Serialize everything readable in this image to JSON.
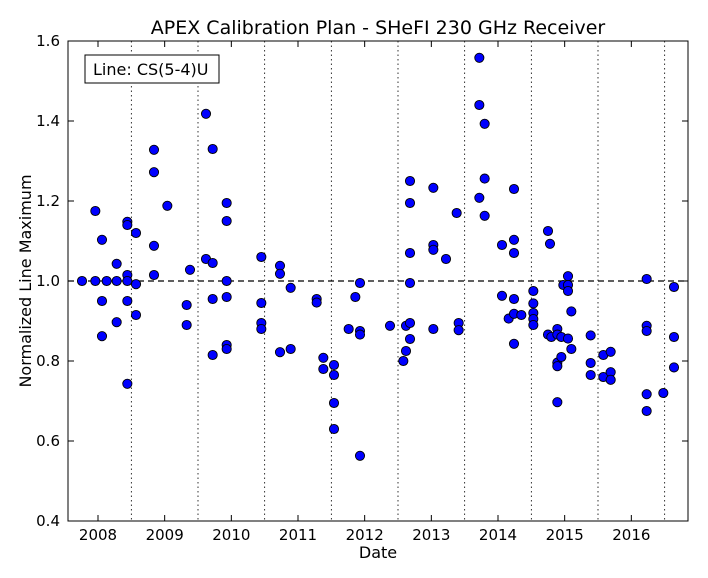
{
  "chart_data": {
    "type": "scatter",
    "title": "APEX Calibration Plan - SHeFI 230 GHz Receiver",
    "xlabel": "Date",
    "ylabel": "Normalized Line Maximum",
    "annotation": "Line: CS(5-4)U",
    "xlim": [
      2007.55,
      2016.85
    ],
    "ylim": [
      0.4,
      1.6
    ],
    "x_ticks": [
      "2008",
      "2009",
      "2010",
      "2011",
      "2012",
      "2013",
      "2014",
      "2015",
      "2016"
    ],
    "x_tick_values": [
      2008,
      2009,
      2010,
      2011,
      2012,
      2013,
      2014,
      2015,
      2016
    ],
    "y_ticks": [
      "0.4",
      "0.6",
      "0.8",
      "1.0",
      "1.2",
      "1.4",
      "1.6"
    ],
    "y_tick_values": [
      0.4,
      0.6,
      0.8,
      1.0,
      1.2,
      1.4,
      1.6
    ],
    "reference_line": 1.0,
    "season_boundaries": [
      2008.5,
      2009.5,
      2010.5,
      2011.5,
      2012.5,
      2013.5,
      2014.5,
      2015.5,
      2016.5
    ],
    "grid": "vertical dotted lines at season boundaries",
    "marker_color": "#0000ff",
    "series": [
      {
        "points": [
          [
            2007.76,
            1.0
          ],
          [
            2007.96,
            1.0
          ],
          [
            2007.96,
            1.175
          ],
          [
            2008.06,
            1.103
          ],
          [
            2008.06,
            0.95
          ],
          [
            2008.06,
            0.862
          ],
          [
            2008.13,
            1.0
          ],
          [
            2008.28,
            1.0
          ],
          [
            2008.28,
            1.043
          ],
          [
            2008.28,
            0.897
          ],
          [
            2008.44,
            1.148
          ],
          [
            2008.44,
            1.14
          ],
          [
            2008.44,
            1.015
          ],
          [
            2008.44,
            1.0
          ],
          [
            2008.44,
            0.95
          ],
          [
            2008.44,
            0.743
          ],
          [
            2008.57,
            1.12
          ],
          [
            2008.57,
            0.992
          ],
          [
            2008.57,
            0.915
          ],
          [
            2008.84,
            1.328
          ],
          [
            2008.84,
            1.272
          ],
          [
            2008.84,
            1.088
          ],
          [
            2008.84,
            1.015
          ],
          [
            2009.04,
            1.188
          ],
          [
            2009.33,
            0.94
          ],
          [
            2009.33,
            0.89
          ],
          [
            2009.38,
            1.028
          ],
          [
            2009.62,
            1.418
          ],
          [
            2009.62,
            1.055
          ],
          [
            2009.72,
            1.33
          ],
          [
            2009.72,
            1.045
          ],
          [
            2009.72,
            0.955
          ],
          [
            2009.72,
            0.815
          ],
          [
            2009.93,
            1.195
          ],
          [
            2009.93,
            1.15
          ],
          [
            2009.93,
            1.0
          ],
          [
            2009.93,
            0.96
          ],
          [
            2009.93,
            0.84
          ],
          [
            2009.93,
            0.83
          ],
          [
            2010.45,
            1.06
          ],
          [
            2010.45,
            0.945
          ],
          [
            2010.45,
            0.895
          ],
          [
            2010.45,
            0.88
          ],
          [
            2010.73,
            1.038
          ],
          [
            2010.73,
            1.018
          ],
          [
            2010.73,
            0.822
          ],
          [
            2010.89,
            0.983
          ],
          [
            2010.89,
            0.83
          ],
          [
            2011.28,
            0.955
          ],
          [
            2011.28,
            0.946
          ],
          [
            2011.38,
            0.808
          ],
          [
            2011.38,
            0.78
          ],
          [
            2011.54,
            0.79
          ],
          [
            2011.54,
            0.765
          ],
          [
            2011.54,
            0.695
          ],
          [
            2011.54,
            0.63
          ],
          [
            2011.76,
            0.88
          ],
          [
            2011.86,
            0.96
          ],
          [
            2011.93,
            0.995
          ],
          [
            2011.93,
            0.875
          ],
          [
            2011.93,
            0.866
          ],
          [
            2011.93,
            0.563
          ],
          [
            2012.38,
            0.888
          ],
          [
            2012.58,
            0.8
          ],
          [
            2012.62,
            0.888
          ],
          [
            2012.62,
            0.825
          ],
          [
            2012.68,
            1.25
          ],
          [
            2012.68,
            1.195
          ],
          [
            2012.68,
            1.07
          ],
          [
            2012.68,
            0.995
          ],
          [
            2012.68,
            0.895
          ],
          [
            2012.68,
            0.855
          ],
          [
            2013.03,
            1.233
          ],
          [
            2013.03,
            1.09
          ],
          [
            2013.03,
            1.078
          ],
          [
            2013.03,
            0.88
          ],
          [
            2013.22,
            1.055
          ],
          [
            2013.38,
            1.17
          ],
          [
            2013.41,
            0.895
          ],
          [
            2013.41,
            0.877
          ],
          [
            2013.72,
            1.558
          ],
          [
            2013.72,
            1.44
          ],
          [
            2013.72,
            1.208
          ],
          [
            2013.8,
            1.393
          ],
          [
            2013.8,
            1.256
          ],
          [
            2013.8,
            1.163
          ],
          [
            2014.06,
            1.09
          ],
          [
            2014.06,
            0.963
          ],
          [
            2014.16,
            0.906
          ],
          [
            2014.24,
            1.23
          ],
          [
            2014.24,
            1.103
          ],
          [
            2014.24,
            1.07
          ],
          [
            2014.24,
            0.955
          ],
          [
            2014.24,
            0.918
          ],
          [
            2014.24,
            0.843
          ],
          [
            2014.35,
            0.915
          ],
          [
            2014.53,
            0.975
          ],
          [
            2014.53,
            0.944
          ],
          [
            2014.53,
            0.92
          ],
          [
            2014.53,
            0.905
          ],
          [
            2014.53,
            0.89
          ],
          [
            2014.75,
            1.125
          ],
          [
            2014.78,
            1.093
          ],
          [
            2014.75,
            0.866
          ],
          [
            2014.8,
            0.86
          ],
          [
            2014.89,
            0.88
          ],
          [
            2014.89,
            0.866
          ],
          [
            2014.89,
            0.796
          ],
          [
            2014.89,
            0.787
          ],
          [
            2014.89,
            0.697
          ],
          [
            2014.95,
            0.86
          ],
          [
            2014.95,
            0.81
          ],
          [
            2014.98,
            0.99
          ],
          [
            2015.05,
            1.012
          ],
          [
            2015.05,
            0.99
          ],
          [
            2015.05,
            0.975
          ],
          [
            2015.05,
            0.856
          ],
          [
            2015.1,
            0.924
          ],
          [
            2015.1,
            0.83
          ],
          [
            2015.39,
            0.864
          ],
          [
            2015.39,
            0.795
          ],
          [
            2015.39,
            0.765
          ],
          [
            2015.58,
            0.815
          ],
          [
            2015.58,
            0.76
          ],
          [
            2015.69,
            0.823
          ],
          [
            2015.69,
            0.772
          ],
          [
            2015.69,
            0.753
          ],
          [
            2016.23,
            1.005
          ],
          [
            2016.23,
            0.888
          ],
          [
            2016.23,
            0.875
          ],
          [
            2016.23,
            0.717
          ],
          [
            2016.23,
            0.675
          ],
          [
            2016.48,
            0.72
          ],
          [
            2016.64,
            0.985
          ],
          [
            2016.64,
            0.86
          ],
          [
            2016.64,
            0.784
          ]
        ]
      }
    ]
  }
}
